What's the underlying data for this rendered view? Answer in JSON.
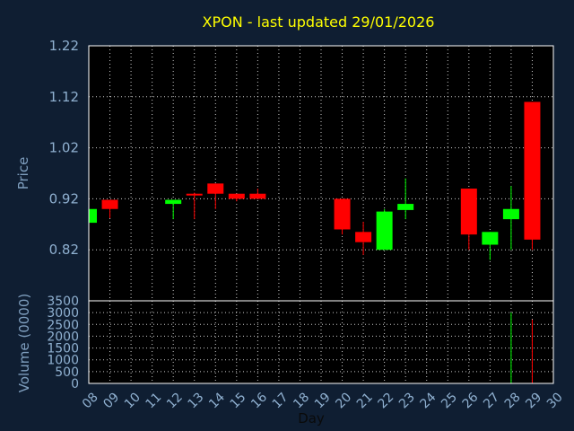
{
  "chart_data": [
    {
      "type": "candlestick",
      "title": "XPON - last updated 29/01/2026",
      "ylabel": "Price",
      "ylim": [
        0.72,
        1.22
      ],
      "yticks": [
        "1.22",
        "1.12",
        "1.02",
        "0.92",
        "0.82"
      ],
      "ytick_values": [
        1.22,
        1.12,
        1.02,
        0.92,
        0.82
      ],
      "grid": true,
      "colors": {
        "up": "#00ff00",
        "down": "#ff0000",
        "background": "#000000",
        "grid": "#ffffff",
        "frame": "#ffffff"
      },
      "candles": [
        {
          "day": 8,
          "open": 0.873,
          "high": 0.9,
          "low": 0.87,
          "close": 0.9,
          "direction": "up"
        },
        {
          "day": 9,
          "open": 0.918,
          "high": 0.918,
          "low": 0.882,
          "close": 0.9,
          "direction": "down"
        },
        {
          "day": 12,
          "open": 0.91,
          "high": 0.918,
          "low": 0.88,
          "close": 0.918,
          "direction": "up"
        },
        {
          "day": 13,
          "open": 0.93,
          "high": 0.932,
          "low": 0.88,
          "close": 0.927,
          "direction": "down"
        },
        {
          "day": 14,
          "open": 0.95,
          "high": 0.95,
          "low": 0.9,
          "close": 0.93,
          "direction": "down"
        },
        {
          "day": 15,
          "open": 0.93,
          "high": 0.93,
          "low": 0.915,
          "close": 0.92,
          "direction": "down"
        },
        {
          "day": 16,
          "open": 0.93,
          "high": 0.94,
          "low": 0.92,
          "close": 0.92,
          "direction": "down"
        },
        {
          "day": 20,
          "open": 0.92,
          "high": 0.92,
          "low": 0.85,
          "close": 0.86,
          "direction": "down"
        },
        {
          "day": 21,
          "open": 0.855,
          "high": 0.875,
          "low": 0.81,
          "close": 0.835,
          "direction": "down"
        },
        {
          "day": 22,
          "open": 0.82,
          "high": 0.9,
          "low": 0.82,
          "close": 0.895,
          "direction": "up"
        },
        {
          "day": 23,
          "open": 0.898,
          "high": 0.96,
          "low": 0.88,
          "close": 0.91,
          "direction": "up"
        },
        {
          "day": 26,
          "open": 0.94,
          "high": 0.94,
          "low": 0.82,
          "close": 0.85,
          "direction": "down"
        },
        {
          "day": 27,
          "open": 0.83,
          "high": 0.855,
          "low": 0.8,
          "close": 0.855,
          "direction": "up"
        },
        {
          "day": 28,
          "open": 0.88,
          "high": 0.945,
          "low": 0.82,
          "close": 0.9,
          "direction": "up"
        },
        {
          "day": 29,
          "open": 1.11,
          "high": 1.11,
          "low": 0.82,
          "close": 0.84,
          "direction": "down"
        }
      ]
    },
    {
      "type": "bar",
      "ylabel": "Volume (0000)",
      "xlabel": "Day",
      "ylim": [
        0,
        3500
      ],
      "yticks": [
        "3500",
        "3000",
        "2500",
        "2000",
        "1500",
        "1000",
        "500",
        "0"
      ],
      "ytick_values": [
        3500,
        3000,
        2500,
        2000,
        1500,
        1000,
        500,
        0
      ],
      "categories": [
        "08",
        "09",
        "10",
        "11",
        "12",
        "13",
        "14",
        "15",
        "16",
        "17",
        "18",
        "19",
        "20",
        "21",
        "22",
        "23",
        "24",
        "25",
        "26",
        "27",
        "28",
        "29",
        "30"
      ],
      "grid": true,
      "bars": [
        {
          "day": 28,
          "value": 3000,
          "color": "#00ff00"
        },
        {
          "day": 29,
          "value": 2700,
          "color": "#ff0000"
        }
      ]
    }
  ]
}
